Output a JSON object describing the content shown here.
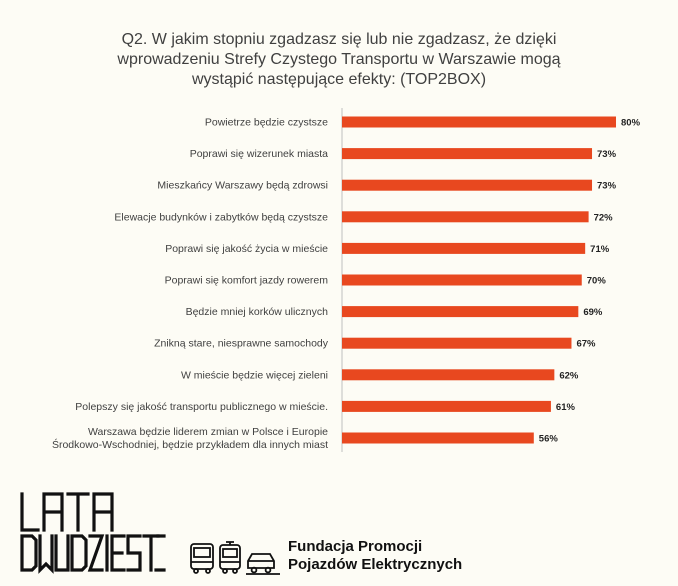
{
  "title_lines": [
    "Q2. W jakim stopniu zgadzasz się lub nie zgadzasz, że dzięki",
    "wprowadzeniu Strefy Czystego Transportu w Warszawie mogą",
    "wystąpić następujące efekty: (TOP2BOX)"
  ],
  "chart_data": {
    "type": "bar",
    "orientation": "horizontal",
    "title": "Q2. W jakim stopniu zgadzasz się lub nie zgadzasz, że dzięki wprowadzeniu Strefy Czystego Transportu w Warszawie mogą wystąpić następujące efekty: (TOP2BOX)",
    "categories": [
      [
        "Powietrze będzie czystsze"
      ],
      [
        "Poprawi się wizerunek miasta"
      ],
      [
        "Mieszkańcy Warszawy będą zdrowsi"
      ],
      [
        "Elewacje budynków i zabytków będą czystsze"
      ],
      [
        "Poprawi się jakość życia w mieście"
      ],
      [
        "Poprawi się komfort jazdy rowerem"
      ],
      [
        "Będzie mniej korków ulicznych"
      ],
      [
        "Znikną stare, niesprawne samochody"
      ],
      [
        "W mieście będzie więcej zieleni"
      ],
      [
        "Polepszy się jakość transportu publicznego w mieście."
      ],
      [
        "Warszawa będzie liderem zmian w Polsce i Europie",
        "Środkowo-Wschodniej, będzie przykładem dla innych miast"
      ]
    ],
    "values": [
      80,
      73,
      73,
      72,
      71,
      70,
      69,
      67,
      62,
      61,
      56
    ],
    "value_labels": [
      "80%",
      "73%",
      "73%",
      "72%",
      "71%",
      "70%",
      "69%",
      "67%",
      "62%",
      "61%",
      "56%"
    ],
    "xlim": [
      0,
      80
    ],
    "grid": false,
    "bar_color": "#e8481f"
  },
  "logos": {
    "lata_lines": [
      "LATA",
      "DWUDZIESTE"
    ],
    "fpe_lines": [
      "Fundacja Promocji",
      "Pojazdów Elektrycznych"
    ]
  }
}
